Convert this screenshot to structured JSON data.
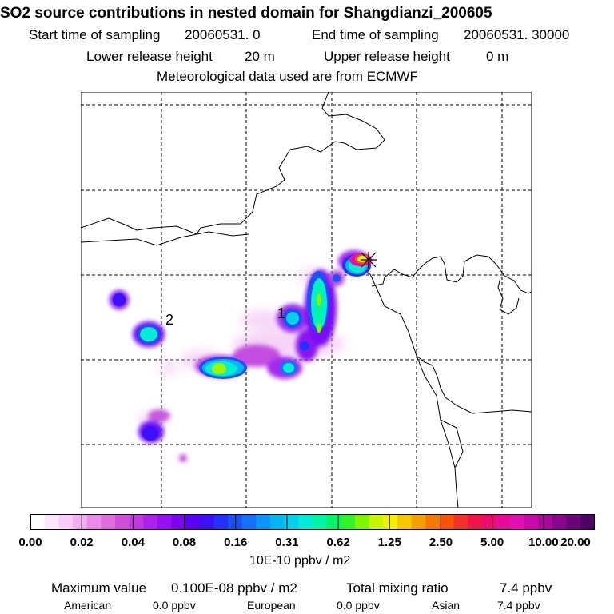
{
  "title": "SO2 source contributions in nested domain for Shangdianzi_200605",
  "sampling": {
    "start_label": "Start time of sampling",
    "start_value": "20060531.     0",
    "end_label": "End time of sampling",
    "end_value": "20060531. 30000"
  },
  "release": {
    "lower_label": "Lower release height",
    "lower_value": "20 m",
    "upper_label": "Upper release height",
    "upper_value": "0 m"
  },
  "meteo": "Meteorological data used are from ECMWF",
  "map": {
    "grid_lines": "dashed",
    "labels": [
      "1",
      "2"
    ],
    "receptor_marker": "cross-asterisk-icon"
  },
  "colorbar": {
    "ticks": [
      "0.00",
      "0.02",
      "0.04",
      "0.08",
      "0.16",
      "0.31",
      "0.62",
      "1.25",
      "2.50",
      "5.00",
      "10.00",
      "20.00"
    ],
    "unit": "10E-10 ppbv / m2",
    "colors": [
      "#ffffff",
      "#fbe6fb",
      "#f7ccf7",
      "#f0b0f0",
      "#e68ee6",
      "#dd6fdd",
      "#d04ed6",
      "#c238df",
      "#ad22e8",
      "#9511ef",
      "#7a05f5",
      "#5a00f8",
      "#3d10fa",
      "#2630fc",
      "#1c50fb",
      "#1570fa",
      "#0a94f8",
      "#05b5f3",
      "#00d3e8",
      "#00ecd3",
      "#00f4a5",
      "#00f56a",
      "#2ff528",
      "#7ff500",
      "#c7f500",
      "#f5f000",
      "#f5c800",
      "#f5a000",
      "#f57a00",
      "#f55400",
      "#f5302a",
      "#f5144a",
      "#f00a70",
      "#ea0a95",
      "#e20fb1",
      "#c80aa8",
      "#a7089a",
      "#87068a",
      "#680677",
      "#4a0462"
    ]
  },
  "footer": {
    "max_label": "Maximum value",
    "max_value": "0.100E-08 ppbv / m2",
    "total_label": "Total mixing ratio",
    "total_value": "7.4 ppbv",
    "american_label": "American",
    "american_value": "0.0 ppbv",
    "european_label": "European",
    "european_value": "0.0 ppbv",
    "asian_label": "Asian",
    "asian_value": "7.4 ppbv"
  }
}
